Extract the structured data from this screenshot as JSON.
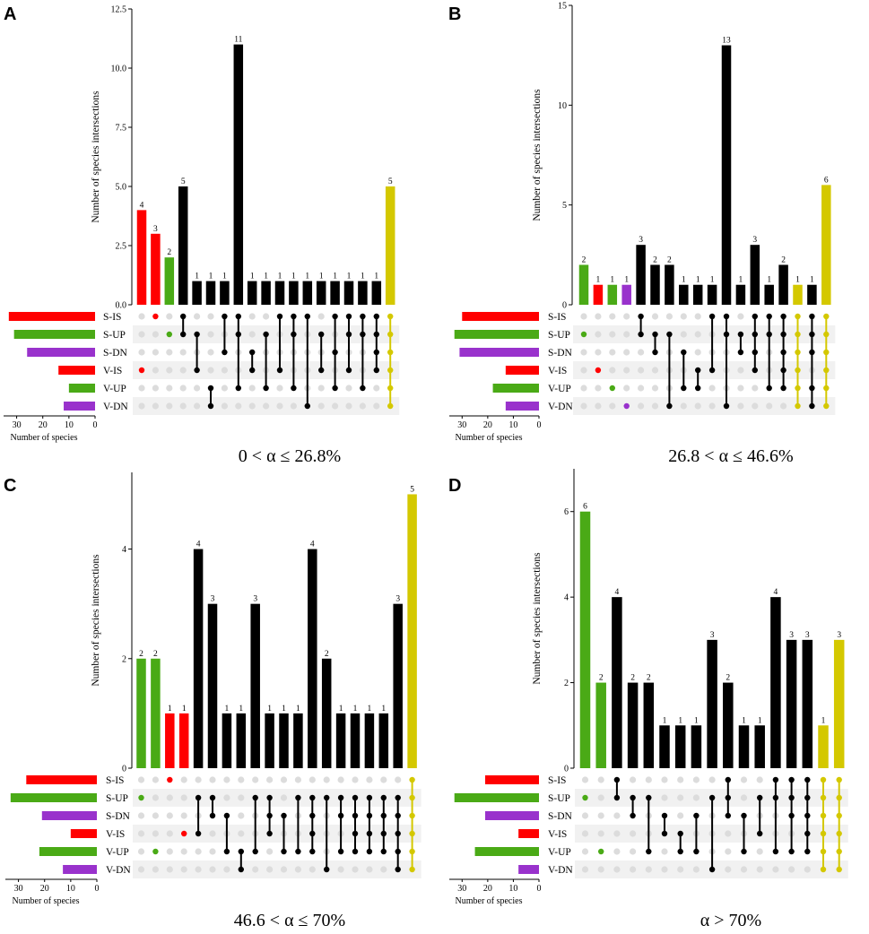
{
  "colors": {
    "S-IS": "#ff0000",
    "S-UP": "#4aaa16",
    "S-DN": "#9932cc",
    "V-IS": "#ff0000",
    "V-UP": "#4aaa16",
    "V-DN": "#9932cc",
    "all": "#d4c800",
    "multi": "#000000",
    "dot_empty": "#dcdcdc",
    "stripe": "#f1f1f1"
  },
  "sets": [
    "S-IS",
    "S-UP",
    "S-DN",
    "V-IS",
    "V-UP",
    "V-DN"
  ],
  "chart_data": [
    {
      "type": "upset",
      "panel": "A",
      "caption": "0 < α ≤ 26.8%",
      "ylabel": "Number of species intersections",
      "xlabel_sets": "Number of species",
      "ylim": [
        0,
        12.5
      ],
      "yticks": [
        0,
        2.5,
        5.0,
        7.5,
        10.0,
        12.5
      ],
      "ytick_labels": [
        "0.0",
        "2.5",
        "5.0",
        "7.5",
        "10.0",
        "12.5"
      ],
      "set_sizes": [
        33,
        31,
        26,
        14,
        10,
        12
      ],
      "set_axis_max": 35,
      "set_ticks": [
        30,
        20,
        10,
        0
      ],
      "intersections": [
        {
          "sets": [
            "V-IS"
          ],
          "value": 4
        },
        {
          "sets": [
            "S-IS"
          ],
          "value": 3
        },
        {
          "sets": [
            "S-UP"
          ],
          "value": 2
        },
        {
          "sets": [
            "S-IS",
            "S-UP"
          ],
          "value": 5
        },
        {
          "sets": [
            "S-UP",
            "V-IS"
          ],
          "value": 1
        },
        {
          "sets": [
            "V-UP",
            "V-DN"
          ],
          "value": 1
        },
        {
          "sets": [
            "S-IS",
            "S-DN"
          ],
          "value": 1
        },
        {
          "sets": [
            "S-IS",
            "S-UP",
            "V-UP"
          ],
          "value": 11
        },
        {
          "sets": [
            "S-DN",
            "V-IS"
          ],
          "value": 1
        },
        {
          "sets": [
            "S-UP",
            "V-UP"
          ],
          "value": 1
        },
        {
          "sets": [
            "S-IS",
            "V-IS"
          ],
          "value": 1
        },
        {
          "sets": [
            "S-IS",
            "S-UP",
            "V-UP"
          ],
          "value": 1
        },
        {
          "sets": [
            "S-IS",
            "V-DN"
          ],
          "value": 1
        },
        {
          "sets": [
            "S-UP",
            "V-IS"
          ],
          "value": 1
        },
        {
          "sets": [
            "S-IS",
            "S-DN",
            "V-UP"
          ],
          "value": 1
        },
        {
          "sets": [
            "S-IS",
            "S-UP",
            "V-IS"
          ],
          "value": 1
        },
        {
          "sets": [
            "S-IS",
            "S-UP",
            "V-UP"
          ],
          "value": 1
        },
        {
          "sets": [
            "S-IS",
            "S-UP",
            "S-DN",
            "V-IS"
          ],
          "value": 1
        },
        {
          "sets": [
            "S-IS",
            "S-UP",
            "S-DN",
            "V-IS",
            "V-UP",
            "V-DN"
          ],
          "value": 5
        }
      ]
    },
    {
      "type": "upset",
      "panel": "B",
      "caption": "26.8 < α ≤ 46.6%",
      "ylabel": "Number of species intersections",
      "xlabel_sets": "Number of species",
      "ylim": [
        0,
        15
      ],
      "yticks": [
        0,
        5,
        10,
        15
      ],
      "ytick_labels": [
        "0",
        "5",
        "10",
        "15"
      ],
      "set_sizes": [
        30,
        33,
        31,
        13,
        18,
        13
      ],
      "set_axis_max": 35,
      "set_ticks": [
        30,
        20,
        10,
        0
      ],
      "intersections": [
        {
          "sets": [
            "S-UP"
          ],
          "value": 2
        },
        {
          "sets": [
            "V-IS"
          ],
          "value": 1
        },
        {
          "sets": [
            "V-UP"
          ],
          "value": 1
        },
        {
          "sets": [
            "V-DN"
          ],
          "value": 1
        },
        {
          "sets": [
            "S-IS",
            "S-UP"
          ],
          "value": 3
        },
        {
          "sets": [
            "S-UP",
            "S-DN"
          ],
          "value": 2
        },
        {
          "sets": [
            "S-UP",
            "V-DN"
          ],
          "value": 2
        },
        {
          "sets": [
            "S-DN",
            "V-UP"
          ],
          "value": 1
        },
        {
          "sets": [
            "V-IS",
            "V-UP"
          ],
          "value": 1
        },
        {
          "sets": [
            "S-IS",
            "V-IS"
          ],
          "value": 1
        },
        {
          "sets": [
            "S-IS",
            "S-UP",
            "V-DN"
          ],
          "value": 13
        },
        {
          "sets": [
            "S-UP",
            "S-DN"
          ],
          "value": 1
        },
        {
          "sets": [
            "S-IS",
            "S-UP",
            "S-DN",
            "V-IS"
          ],
          "value": 3
        },
        {
          "sets": [
            "S-IS",
            "S-UP",
            "V-UP"
          ],
          "value": 1
        },
        {
          "sets": [
            "S-IS",
            "S-UP",
            "S-DN",
            "V-IS",
            "V-UP"
          ],
          "value": 2
        },
        {
          "sets": [
            "S-IS",
            "S-UP",
            "S-DN",
            "V-IS",
            "V-UP",
            "V-DN"
          ],
          "value": 1
        },
        {
          "sets": [
            "S-IS",
            "S-UP",
            "S-DN",
            "V-UP",
            "V-DN"
          ],
          "value": 1
        },
        {
          "sets": [
            "S-IS",
            "S-UP",
            "S-DN",
            "V-IS",
            "V-UP",
            "V-DN"
          ],
          "value": 6
        }
      ]
    },
    {
      "type": "upset",
      "panel": "C",
      "caption": "46.6 < α ≤ 70%",
      "ylabel": "Number of species intersections",
      "xlabel_sets": "Number of species",
      "ylim": [
        0,
        5.4
      ],
      "yticks": [
        0,
        2,
        4
      ],
      "ytick_labels": [
        "0",
        "2",
        "4"
      ],
      "set_sizes": [
        27,
        33,
        21,
        10,
        22,
        13
      ],
      "set_axis_max": 35,
      "set_ticks": [
        30,
        20,
        10,
        0
      ],
      "intersections": [
        {
          "sets": [
            "S-UP"
          ],
          "value": 2
        },
        {
          "sets": [
            "V-UP"
          ],
          "value": 2
        },
        {
          "sets": [
            "S-IS"
          ],
          "value": 1
        },
        {
          "sets": [
            "V-IS"
          ],
          "value": 1
        },
        {
          "sets": [
            "S-UP",
            "V-IS"
          ],
          "value": 4
        },
        {
          "sets": [
            "S-UP",
            "S-DN"
          ],
          "value": 3
        },
        {
          "sets": [
            "S-DN",
            "V-UP"
          ],
          "value": 1
        },
        {
          "sets": [
            "V-UP",
            "V-DN"
          ],
          "value": 1
        },
        {
          "sets": [
            "S-UP",
            "V-UP"
          ],
          "value": 3
        },
        {
          "sets": [
            "S-UP",
            "S-DN",
            "V-IS"
          ],
          "value": 1
        },
        {
          "sets": [
            "S-DN",
            "V-UP"
          ],
          "value": 1
        },
        {
          "sets": [
            "S-UP",
            "V-UP"
          ],
          "value": 1
        },
        {
          "sets": [
            "S-UP",
            "S-DN",
            "V-IS",
            "V-UP"
          ],
          "value": 4
        },
        {
          "sets": [
            "S-UP",
            "V-DN"
          ],
          "value": 2
        },
        {
          "sets": [
            "S-UP",
            "S-DN",
            "V-UP"
          ],
          "value": 1
        },
        {
          "sets": [
            "S-UP",
            "S-DN",
            "V-IS",
            "V-UP"
          ],
          "value": 1
        },
        {
          "sets": [
            "S-UP",
            "S-DN",
            "V-IS",
            "V-UP"
          ],
          "value": 1
        },
        {
          "sets": [
            "S-UP",
            "S-DN",
            "V-IS",
            "V-UP"
          ],
          "value": 1
        },
        {
          "sets": [
            "S-UP",
            "S-DN",
            "V-IS",
            "V-UP",
            "V-DN"
          ],
          "value": 3
        },
        {
          "sets": [
            "S-IS",
            "S-UP",
            "S-DN",
            "V-IS",
            "V-UP",
            "V-DN"
          ],
          "value": 5
        }
      ]
    },
    {
      "type": "upset",
      "panel": "D",
      "caption": "α > 70%",
      "ylabel": "Number of species intersections",
      "xlabel_sets": "Number of species",
      "ylim": [
        0,
        7
      ],
      "yticks": [
        0,
        2,
        4,
        6
      ],
      "ytick_labels": [
        "0",
        "2",
        "4",
        "6"
      ],
      "set_sizes": [
        21,
        33,
        21,
        8,
        25,
        8
      ],
      "set_axis_max": 35,
      "set_ticks": [
        30,
        20,
        10,
        0
      ],
      "intersections": [
        {
          "sets": [
            "S-UP"
          ],
          "value": 6
        },
        {
          "sets": [
            "V-UP"
          ],
          "value": 2
        },
        {
          "sets": [
            "S-IS",
            "S-UP"
          ],
          "value": 4
        },
        {
          "sets": [
            "S-UP",
            "S-DN"
          ],
          "value": 2
        },
        {
          "sets": [
            "S-UP",
            "V-UP"
          ],
          "value": 2
        },
        {
          "sets": [
            "S-DN",
            "V-IS"
          ],
          "value": 1
        },
        {
          "sets": [
            "V-IS",
            "V-UP"
          ],
          "value": 1
        },
        {
          "sets": [
            "S-DN",
            "V-UP"
          ],
          "value": 1
        },
        {
          "sets": [
            "S-UP",
            "V-DN"
          ],
          "value": 3
        },
        {
          "sets": [
            "S-IS",
            "S-UP",
            "S-DN"
          ],
          "value": 2
        },
        {
          "sets": [
            "S-DN",
            "V-UP"
          ],
          "value": 1
        },
        {
          "sets": [
            "S-UP",
            "V-IS"
          ],
          "value": 1
        },
        {
          "sets": [
            "S-IS",
            "S-UP",
            "V-UP"
          ],
          "value": 4
        },
        {
          "sets": [
            "S-IS",
            "S-UP",
            "S-DN",
            "V-UP"
          ],
          "value": 3
        },
        {
          "sets": [
            "S-IS",
            "S-UP",
            "S-DN",
            "V-IS",
            "V-UP"
          ],
          "value": 3
        },
        {
          "sets": [
            "S-IS",
            "S-UP",
            "S-DN",
            "V-IS",
            "V-UP",
            "V-DN"
          ],
          "value": 1
        },
        {
          "sets": [
            "S-IS",
            "S-UP",
            "S-DN",
            "V-IS",
            "V-UP",
            "V-DN"
          ],
          "value": 3
        }
      ]
    }
  ]
}
